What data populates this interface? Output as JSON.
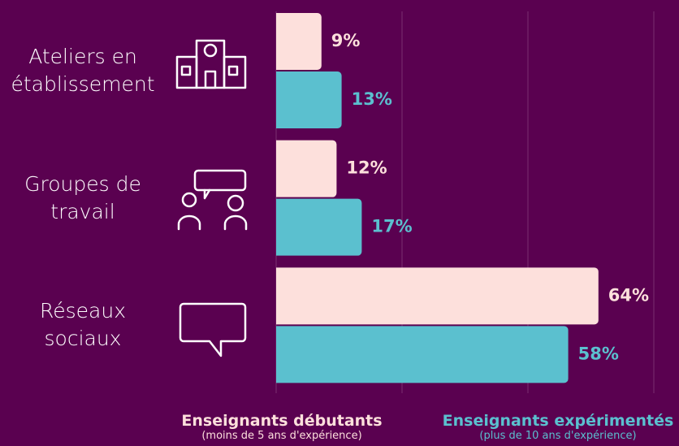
{
  "chart_data": {
    "type": "bar",
    "orientation": "horizontal",
    "categories": [
      "Ateliers en établissement",
      "Groupes de travail",
      "Réseaux sociaux"
    ],
    "series": [
      {
        "name": "Enseignants débutants",
        "note": "(moins de 5 ans d'expérience)",
        "color": "#fde0dc",
        "values": [
          9,
          12,
          64
        ],
        "value_labels": [
          "9%",
          "12%",
          "64%"
        ]
      },
      {
        "name": "Enseignants expérimentés",
        "note": "(plus de 10 ans d'expérience)",
        "color": "#5bc0cf",
        "values": [
          13,
          17,
          58
        ],
        "value_labels": [
          "13%",
          "17%",
          "58%"
        ]
      }
    ],
    "xlim": [
      0,
      80
    ],
    "xticks": [
      0,
      25,
      50,
      75
    ],
    "grid": true
  }
}
